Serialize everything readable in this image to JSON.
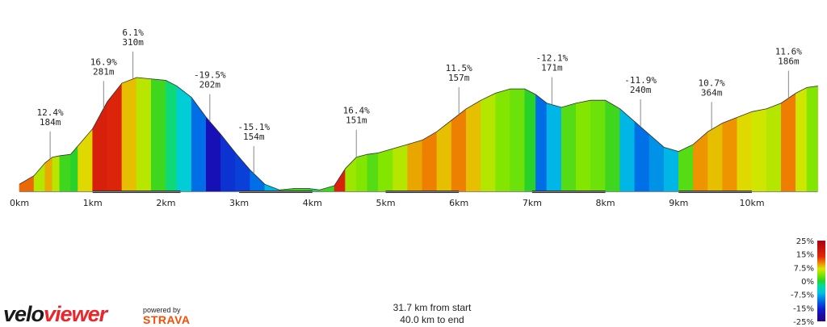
{
  "chart_data": {
    "type": "area",
    "title": "",
    "xlabel": "",
    "ylabel": "",
    "x_unit": "km",
    "xlim": [
      0,
      10.9
    ],
    "x_ticks": [
      "0km",
      "1km",
      "2km",
      "3km",
      "4km",
      "5km",
      "6km",
      "7km",
      "8km",
      "9km",
      "10km"
    ],
    "profile": {
      "x": [
        0,
        0.2,
        0.35,
        0.45,
        0.55,
        0.7,
        0.8,
        1.0,
        1.2,
        1.4,
        1.6,
        1.8,
        2.0,
        2.15,
        2.35,
        2.55,
        2.75,
        2.95,
        3.15,
        3.35,
        3.55,
        3.75,
        3.95,
        4.1,
        4.3,
        4.45,
        4.6,
        4.75,
        4.9,
        5.1,
        5.3,
        5.5,
        5.7,
        5.9,
        6.1,
        6.3,
        6.5,
        6.7,
        6.9,
        7.05,
        7.2,
        7.4,
        7.6,
        7.8,
        8.0,
        8.2,
        8.4,
        8.6,
        8.8,
        9.0,
        9.2,
        9.4,
        9.6,
        9.8,
        10.0,
        10.2,
        10.4,
        10.6,
        10.75,
        10.9
      ],
      "elevation": [
        5,
        11,
        20,
        24,
        25,
        26,
        32,
        44,
        63,
        76,
        80,
        79,
        78,
        74,
        66,
        52,
        40,
        27,
        15,
        5,
        1,
        2,
        2,
        1,
        4,
        16,
        24,
        26,
        27,
        30,
        33,
        36,
        42,
        50,
        58,
        64,
        69,
        72,
        72,
        68,
        62,
        59,
        62,
        64,
        64,
        58,
        49,
        40,
        31,
        28,
        33,
        42,
        48,
        52,
        56,
        58,
        62,
        69,
        73,
        74
      ],
      "grade_pct": [
        12.4,
        6,
        9.8,
        6.1,
        1,
        0,
        8,
        16.9,
        16,
        9,
        6.1,
        1,
        -2,
        -6,
        -12,
        -19.5,
        -16,
        -15.1,
        -12,
        -8,
        0.5,
        1,
        -1,
        0.8,
        16.4,
        5,
        4,
        2,
        4,
        6,
        10,
        11.5,
        9,
        11.5,
        9,
        6,
        4,
        3,
        0,
        -12.1,
        -8,
        2,
        4,
        3,
        1,
        -8,
        -11.9,
        -10,
        -8,
        2,
        10.7,
        9,
        10.7,
        8,
        7,
        6,
        11.6,
        7,
        4,
        4
      ]
    },
    "annotations": [
      {
        "grade": "12.4%",
        "elev": "184m",
        "km": 0.42
      },
      {
        "grade": "16.9%",
        "elev": "281m",
        "km": 1.15
      },
      {
        "grade": "6.1%",
        "elev": "310m",
        "km": 1.55
      },
      {
        "grade": "-19.5%",
        "elev": "202m",
        "km": 2.6
      },
      {
        "grade": "-15.1%",
        "elev": "154m",
        "km": 3.2
      },
      {
        "grade": "16.4%",
        "elev": "151m",
        "km": 4.6
      },
      {
        "grade": "11.5%",
        "elev": "157m",
        "km": 6.0
      },
      {
        "grade": "-12.1%",
        "elev": "171m",
        "km": 7.27
      },
      {
        "grade": "-11.9%",
        "elev": "240m",
        "km": 8.48
      },
      {
        "grade": "10.7%",
        "elev": "364m",
        "km": 9.45
      },
      {
        "grade": "11.6%",
        "elev": "186m",
        "km": 10.5
      }
    ],
    "climb_segments": [
      [
        1,
        2.2
      ],
      [
        3,
        4
      ],
      [
        5,
        6
      ],
      [
        7,
        8
      ],
      [
        9,
        10
      ]
    ],
    "color_scale": {
      "labels": [
        "25%",
        "15%",
        "7.5%",
        "0%",
        "-7.5%",
        "-15%",
        "-25%"
      ],
      "range": [
        -25,
        25
      ]
    }
  },
  "info": {
    "from_start": "31.7 km from start",
    "to_end": "40.0 km to end"
  },
  "brand": {
    "logo_velo": "velo",
    "logo_viewer": "viewer",
    "powered_by": "powered by",
    "strava": "STRAVA",
    "colors": {
      "logo_dark": "#1a1a1a",
      "logo_red": "#e8262c",
      "strava_orange": "#fc4c02"
    }
  }
}
